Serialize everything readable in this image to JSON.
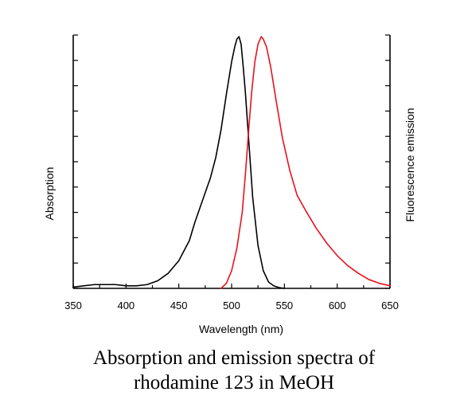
{
  "chart_data": {
    "type": "line",
    "xlabel": "Wavelength (nm)",
    "ylabel_left": "Absorption",
    "ylabel_right": "Fluorescence emission",
    "xlim": [
      350,
      650
    ],
    "ylim": [
      0,
      1
    ],
    "x_ticks": [
      350,
      400,
      450,
      500,
      550,
      600,
      650
    ],
    "grid": false,
    "colors": {
      "absorption": "#000000",
      "emission": "#e8121c"
    },
    "series": [
      {
        "key": "absorption",
        "x": [
          350,
          360,
          370,
          380,
          390,
          400,
          410,
          420,
          430,
          440,
          450,
          460,
          465,
          470,
          475,
          480,
          485,
          490,
          495,
          500,
          503,
          505,
          507,
          509,
          511,
          513,
          516,
          520,
          525,
          530,
          535,
          540,
          545,
          550
        ],
        "y": [
          0.005,
          0.01,
          0.015,
          0.015,
          0.015,
          0.01,
          0.01,
          0.015,
          0.03,
          0.06,
          0.11,
          0.19,
          0.26,
          0.32,
          0.38,
          0.44,
          0.52,
          0.63,
          0.77,
          0.9,
          0.96,
          0.99,
          1.0,
          0.97,
          0.88,
          0.78,
          0.6,
          0.36,
          0.17,
          0.07,
          0.025,
          0.01,
          0.003,
          0.0
        ]
      },
      {
        "key": "emission",
        "x": [
          490,
          495,
          500,
          505,
          510,
          513,
          516,
          519,
          522,
          525,
          528,
          530,
          533,
          537,
          542,
          548,
          555,
          562,
          570,
          580,
          590,
          600,
          610,
          620,
          630,
          640,
          650
        ],
        "y": [
          0.0,
          0.02,
          0.07,
          0.16,
          0.3,
          0.45,
          0.62,
          0.78,
          0.9,
          0.97,
          1.0,
          0.99,
          0.96,
          0.88,
          0.75,
          0.6,
          0.47,
          0.37,
          0.31,
          0.24,
          0.18,
          0.13,
          0.09,
          0.06,
          0.035,
          0.02,
          0.01
        ]
      }
    ]
  },
  "caption": {
    "line1": "Absorption and emission spectra of",
    "line2": "rhodamine 123 in MeOH"
  }
}
